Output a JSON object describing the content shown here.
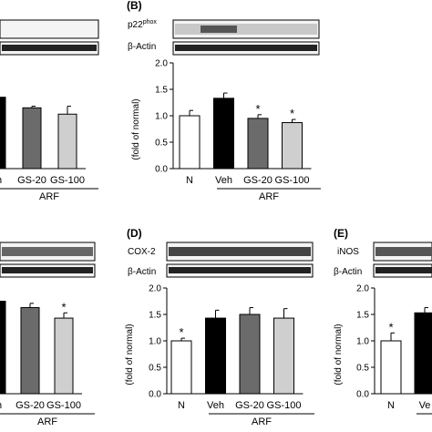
{
  "colors": {
    "bar_outline": "#000000",
    "blot_band": "#1a1a1a",
    "blot_bg": "#f4f4f4"
  },
  "panels": {
    "a": {
      "label": "",
      "blot_labels": []
    },
    "b": {
      "label": "(B)",
      "blot_labels": [
        "p22",
        "β-Actin"
      ],
      "blot_label_sup": "phox"
    },
    "c": {
      "label": "",
      "blot_labels": []
    },
    "d": {
      "label": "(D)",
      "blot_labels": [
        "COX-2",
        "β-Actin"
      ]
    },
    "e": {
      "label": "(E)",
      "blot_labels": [
        "iNOS",
        "β-Actin"
      ]
    }
  },
  "chart_data": [
    {
      "id": "a",
      "type": "bar",
      "categories": [
        "Veh",
        "GS-20",
        "GS-100"
      ],
      "category_labels": [
        "eh",
        "GS-20",
        "GS-100"
      ],
      "values": [
        1.35,
        1.15,
        1.03
      ],
      "errors": [
        0.1,
        0.03,
        0.15
      ],
      "significance": [
        "",
        "",
        ""
      ],
      "bar_colors": [
        "#000000",
        "#6b6b6b",
        "#cfcfcf"
      ],
      "group_label": "ARF",
      "ylabel": "",
      "ylim": [
        0,
        2.0
      ],
      "yticks": []
    },
    {
      "id": "b",
      "type": "bar",
      "categories": [
        "N",
        "Veh",
        "GS-20",
        "GS-100"
      ],
      "category_labels": [
        "N",
        "Veh",
        "GS-20",
        "GS-100"
      ],
      "values": [
        1.0,
        1.33,
        0.95,
        0.87
      ],
      "errors": [
        0.1,
        0.1,
        0.07,
        0.06
      ],
      "significance": [
        "",
        "",
        "*",
        "*"
      ],
      "bar_colors": [
        "#ffffff",
        "#000000",
        "#6b6b6b",
        "#cfcfcf"
      ],
      "group_label": "ARF",
      "ylabel": "(fold of normal)",
      "ylim": [
        0,
        2.0
      ],
      "yticks": [
        "0.0",
        "0.5",
        "1.0",
        "1.5",
        "2.0"
      ]
    },
    {
      "id": "c",
      "type": "bar",
      "categories": [
        "Veh",
        "GS-20",
        "GS-100"
      ],
      "category_labels": [
        "eh",
        "GS-20",
        "GS-100"
      ],
      "values": [
        1.75,
        1.63,
        1.43
      ],
      "errors": [
        0.05,
        0.08,
        0.1
      ],
      "significance": [
        "",
        "",
        "*"
      ],
      "bar_colors": [
        "#000000",
        "#6b6b6b",
        "#cfcfcf"
      ],
      "group_label": "ARF",
      "ylabel": "",
      "ylim": [
        0,
        2.0
      ],
      "yticks": []
    },
    {
      "id": "d",
      "type": "bar",
      "categories": [
        "N",
        "Veh",
        "GS-20",
        "GS-100"
      ],
      "category_labels": [
        "N",
        "Veh",
        "GS-20",
        "GS-100"
      ],
      "values": [
        1.0,
        1.43,
        1.5,
        1.43
      ],
      "errors": [
        0.05,
        0.15,
        0.13,
        0.18
      ],
      "significance": [
        "*",
        "",
        "",
        ""
      ],
      "bar_colors": [
        "#ffffff",
        "#000000",
        "#6b6b6b",
        "#cfcfcf"
      ],
      "group_label": "ARF",
      "ylabel": "(fold of normal)",
      "ylim": [
        0,
        2.0
      ],
      "yticks": [
        "0.0",
        "0.5",
        "1.0",
        "1.5",
        "2.0"
      ]
    },
    {
      "id": "e",
      "type": "bar",
      "categories": [
        "N",
        "Veh"
      ],
      "category_labels": [
        "N",
        "Ve"
      ],
      "values": [
        1.0,
        1.53
      ],
      "errors": [
        0.15,
        0.1
      ],
      "significance": [
        "*",
        ""
      ],
      "bar_colors": [
        "#ffffff",
        "#000000"
      ],
      "group_label": "",
      "ylabel": "(fold of normal)",
      "ylim": [
        0,
        2.0
      ],
      "yticks": [
        "0.0",
        "0.5",
        "1.0",
        "1.5",
        "2.0"
      ]
    }
  ]
}
